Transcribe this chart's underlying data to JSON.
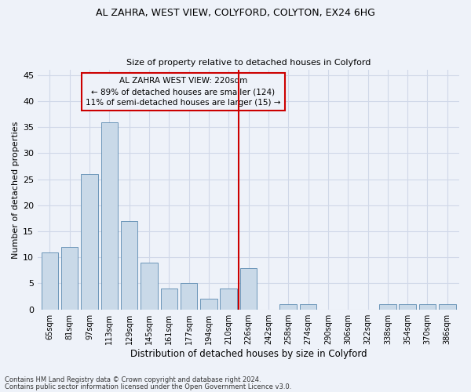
{
  "title1": "AL ZAHRA, WEST VIEW, COLYFORD, COLYTON, EX24 6HG",
  "title2": "Size of property relative to detached houses in Colyford",
  "xlabel": "Distribution of detached houses by size in Colyford",
  "ylabel": "Number of detached properties",
  "footnote1": "Contains HM Land Registry data © Crown copyright and database right 2024.",
  "footnote2": "Contains public sector information licensed under the Open Government Licence v3.0.",
  "annotation_title": "AL ZAHRA WEST VIEW: 220sqm",
  "annotation_line1": "← 89% of detached houses are smaller (124)",
  "annotation_line2": "11% of semi-detached houses are larger (15) →",
  "bar_color": "#c9d9e8",
  "bar_edge_color": "#5a8ab0",
  "grid_color": "#d0d8e8",
  "ref_line_color": "#cc0000",
  "bg_color": "#eef2f9",
  "categories": [
    "65sqm",
    "81sqm",
    "97sqm",
    "113sqm",
    "129sqm",
    "145sqm",
    "161sqm",
    "177sqm",
    "194sqm",
    "210sqm",
    "226sqm",
    "242sqm",
    "258sqm",
    "274sqm",
    "290sqm",
    "306sqm",
    "322sqm",
    "338sqm",
    "354sqm",
    "370sqm",
    "386sqm"
  ],
  "values": [
    11,
    12,
    26,
    36,
    17,
    9,
    4,
    5,
    2,
    4,
    8,
    0,
    1,
    1,
    0,
    0,
    0,
    1,
    1,
    1,
    1
  ],
  "ref_bar_index": 9.5,
  "ylim": [
    0,
    46
  ],
  "yticks": [
    0,
    5,
    10,
    15,
    20,
    25,
    30,
    35,
    40,
    45
  ]
}
